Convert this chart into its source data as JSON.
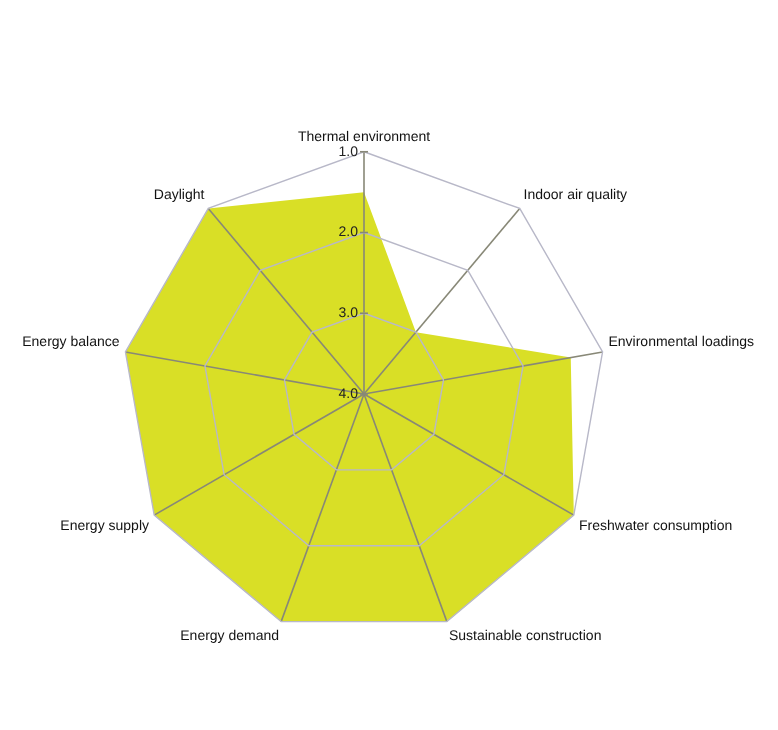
{
  "chart_data": {
    "type": "radar",
    "categories": [
      "Thermal environment",
      "Indoor air quality",
      "Environmental loadings",
      "Freshwater consumption",
      "Sustainable construction",
      "Energy demand",
      "Energy supply",
      "Energy balance",
      "Daylight"
    ],
    "series": [
      {
        "color": "#d9df26",
        "values": [
          1.5,
          3.0,
          1.4,
          1.0,
          1.0,
          1.0,
          1.0,
          1.0,
          1.0
        ]
      }
    ],
    "ylim": [
      4,
      1
    ],
    "yticks": [
      {
        "value": 1,
        "label": "1.0"
      },
      {
        "value": 2,
        "label": "2.0"
      },
      {
        "value": 3,
        "label": "3.0"
      },
      {
        "value": 4,
        "label": "4.0"
      }
    ],
    "grid": true,
    "marker": "none"
  }
}
